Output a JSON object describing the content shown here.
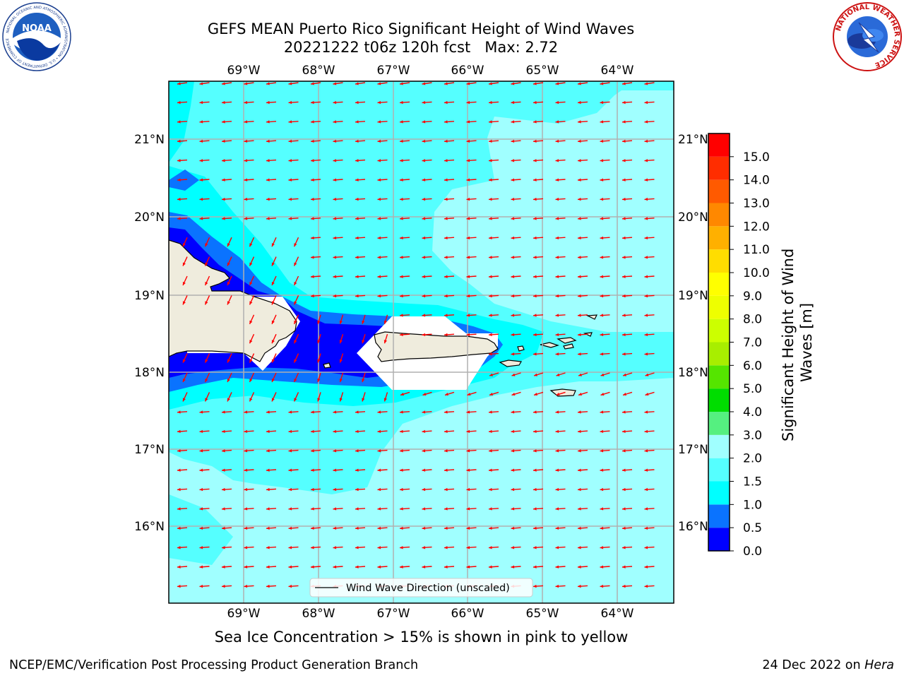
{
  "header": {
    "title_line1": "GEFS MEAN Puerto Rico Significant Height of Wind Waves",
    "title_line2": "20221222 t06z 120h fcst   Max: 2.72",
    "left_logo": "NOAA",
    "left_logo_ring_text": "NATIONAL OCEANIC AND ATMOSPHERIC ADMINISTRATION • U.S. DEPARTMENT OF COMMERCE",
    "right_logo_ring_text": "NATIONAL WEATHER SERVICE"
  },
  "map": {
    "lon_labels": [
      "69°W",
      "68°W",
      "67°W",
      "66°W",
      "65°W",
      "64°W"
    ],
    "lat_labels": [
      "21°N",
      "20°N",
      "19°N",
      "18°N",
      "17°N",
      "16°N"
    ],
    "legend_label": "Wind Wave Direction (unscaled)",
    "colors": {
      "land": "#efecdd",
      "arrow": "#ff0000",
      "gridline": "#b0b0b0",
      "water_0_05": "#0000ff",
      "water_05_1": "#0a73ff",
      "water_1_15": "#00ffff",
      "water_15_2": "#55ffff",
      "water_2_3": "#a0ffff"
    },
    "wind_wave_direction": "westward",
    "max_value": 2.72
  },
  "colorbar": {
    "label": "Significant Height of Wind Waves [m]",
    "ticks": [
      "0.0",
      "0.5",
      "1.0",
      "1.5",
      "2.0",
      "3.0",
      "4.0",
      "5.0",
      "6.0",
      "7.0",
      "8.0",
      "9.0",
      "10.0",
      "11.0",
      "12.0",
      "13.0",
      "14.0",
      "15.0"
    ],
    "colors": [
      "#0000ff",
      "#0a73ff",
      "#00ffff",
      "#55ffff",
      "#a0ffff",
      "#55f080",
      "#00dd00",
      "#55e500",
      "#a8ee00",
      "#ccff00",
      "#eeff00",
      "#ffff00",
      "#ffdd00",
      "#ffb000",
      "#ff8800",
      "#ff5a00",
      "#ff2d00",
      "#ff0000"
    ]
  },
  "notes": {
    "sea_ice": "Sea Ice Concentration > 15% is shown in pink to yellow"
  },
  "footer": {
    "left": "NCEP/EMC/Verification Post Processing Product Generation Branch",
    "right_date": "24 Dec 2022 on ",
    "right_host": "Hera"
  }
}
